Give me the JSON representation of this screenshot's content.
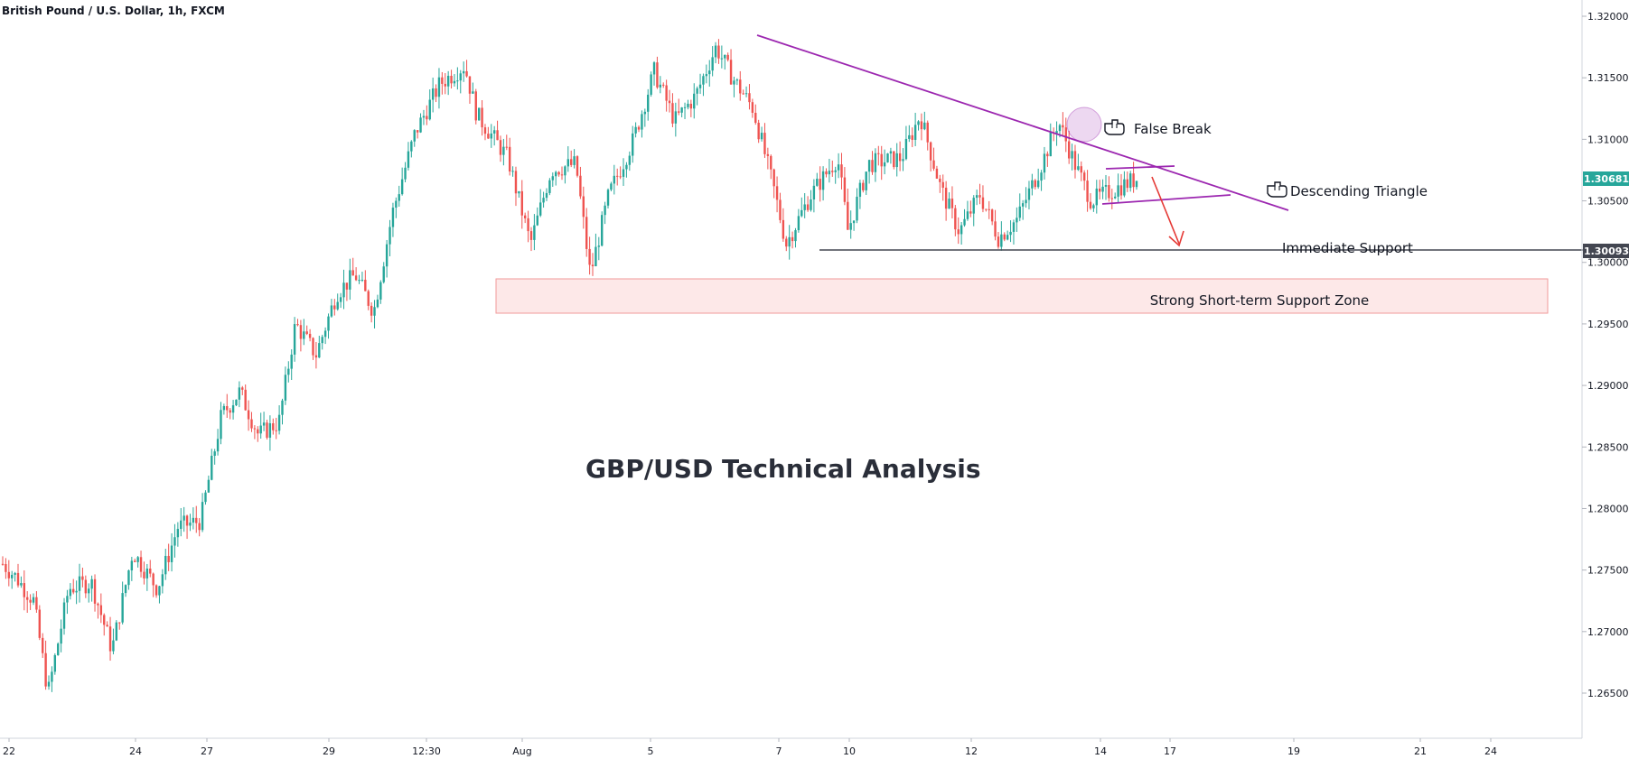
{
  "header": {
    "symbol_title": "British Pound / U.S. Dollar, 1h, FXCM"
  },
  "chart_data": {
    "type": "candlestick",
    "title": "GBP/USD Technical Analysis",
    "ylim": [
      1.262,
      1.3215
    ],
    "y_ticks": [
      "1.32000",
      "1.31500",
      "1.31000",
      "1.30500",
      "1.30000",
      "1.29500",
      "1.29000",
      "1.28500",
      "1.28000",
      "1.27500",
      "1.27000",
      "1.26500"
    ],
    "y_tick_values": [
      1.32,
      1.315,
      1.31,
      1.305,
      1.3,
      1.295,
      1.29,
      1.285,
      1.28,
      1.275,
      1.27,
      1.265
    ],
    "x_ticks": [
      "22",
      "24",
      "27",
      "29",
      "12:30",
      "Aug",
      "5",
      "7",
      "10",
      "12",
      "14",
      "17",
      "19",
      "21",
      "24"
    ],
    "price_labels": {
      "current": {
        "text": "1.30681",
        "value": 1.30681,
        "color": "#26a69a"
      },
      "support": {
        "text": "1.30093",
        "value": 1.30093,
        "color": "#434651"
      }
    },
    "annotations": {
      "false_break": "False Break",
      "descending_triangle": "Descending Triangle",
      "immediate_support": "Immediate Support",
      "support_zone": "Strong Short-term Support Zone"
    },
    "price_path": [
      {
        "x": 0,
        "y": 1.2755
      },
      {
        "x": 0.6,
        "y": 1.2745
      },
      {
        "x": 1.5,
        "y": 1.2725
      },
      {
        "x": 2.2,
        "y": 1.265
      },
      {
        "x": 3.2,
        "y": 1.2735
      },
      {
        "x": 4.3,
        "y": 1.274
      },
      {
        "x": 5.3,
        "y": 1.2685
      },
      {
        "x": 6.3,
        "y": 1.2765
      },
      {
        "x": 7.5,
        "y": 1.2735
      },
      {
        "x": 8.5,
        "y": 1.2785
      },
      {
        "x": 9.6,
        "y": 1.279
      },
      {
        "x": 10.6,
        "y": 1.2875
      },
      {
        "x": 11.5,
        "y": 1.2895
      },
      {
        "x": 12.4,
        "y": 1.286
      },
      {
        "x": 13.4,
        "y": 1.287
      },
      {
        "x": 14.2,
        "y": 1.295
      },
      {
        "x": 15.2,
        "y": 1.2925
      },
      {
        "x": 16.2,
        "y": 1.2975
      },
      {
        "x": 17.1,
        "y": 1.299
      },
      {
        "x": 18.0,
        "y": 1.296
      },
      {
        "x": 18.9,
        "y": 1.304
      },
      {
        "x": 20.0,
        "y": 1.3105
      },
      {
        "x": 21.2,
        "y": 1.3145
      },
      {
        "x": 22.4,
        "y": 1.316
      },
      {
        "x": 23.0,
        "y": 1.312
      },
      {
        "x": 24.5,
        "y": 1.3085
      },
      {
        "x": 25.6,
        "y": 1.3015
      },
      {
        "x": 26.6,
        "y": 1.3075
      },
      {
        "x": 27.8,
        "y": 1.308
      },
      {
        "x": 28.5,
        "y": 1.299
      },
      {
        "x": 29.4,
        "y": 1.3055
      },
      {
        "x": 30.6,
        "y": 1.31
      },
      {
        "x": 31.6,
        "y": 1.3155
      },
      {
        "x": 32.6,
        "y": 1.3115
      },
      {
        "x": 33.6,
        "y": 1.3135
      },
      {
        "x": 34.6,
        "y": 1.3175
      },
      {
        "x": 35.4,
        "y": 1.315
      },
      {
        "x": 36.4,
        "y": 1.3125
      },
      {
        "x": 37.4,
        "y": 1.306
      },
      {
        "x": 38.0,
        "y": 1.3015
      },
      {
        "x": 39.2,
        "y": 1.3055
      },
      {
        "x": 40.5,
        "y": 1.3085
      },
      {
        "x": 41.0,
        "y": 1.3025
      },
      {
        "x": 42.0,
        "y": 1.308
      },
      {
        "x": 43.6,
        "y": 1.3085
      },
      {
        "x": 44.5,
        "y": 1.312
      },
      {
        "x": 45.5,
        "y": 1.306
      },
      {
        "x": 46.4,
        "y": 1.3025
      },
      {
        "x": 47.4,
        "y": 1.3055
      },
      {
        "x": 48.3,
        "y": 1.302
      },
      {
        "x": 49.2,
        "y": 1.3035
      },
      {
        "x": 50.4,
        "y": 1.308
      },
      {
        "x": 51.2,
        "y": 1.3115
      },
      {
        "x": 52.0,
        "y": 1.308
      },
      {
        "x": 52.8,
        "y": 1.305
      },
      {
        "x": 54.0,
        "y": 1.306
      },
      {
        "x": 55.0,
        "y": 1.3068
      }
    ]
  }
}
